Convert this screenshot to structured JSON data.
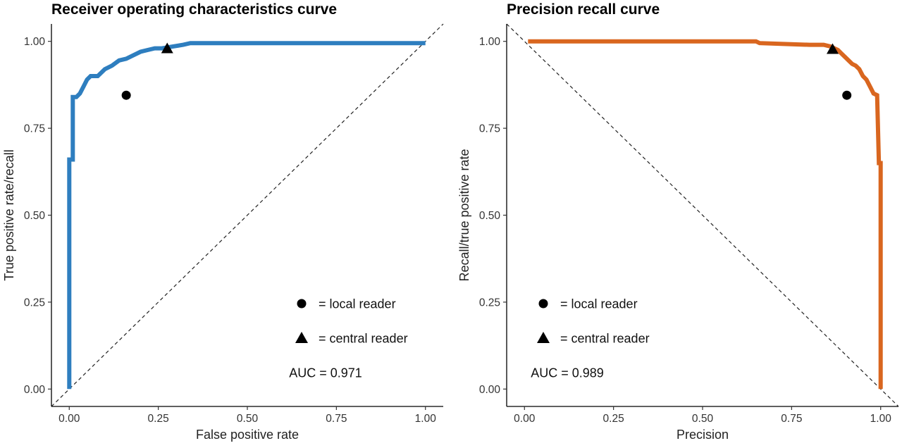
{
  "chart_data": [
    {
      "type": "line",
      "title": "Receiver operating characteristics curve",
      "xlabel": "False positive rate",
      "ylabel": "True positive rate/recall",
      "xlim": [
        -0.05,
        1.05
      ],
      "ylim": [
        -0.05,
        1.05
      ],
      "xticks": [
        "0.00",
        "0.25",
        "0.50",
        "0.75",
        "1.00"
      ],
      "yticks": [
        "0.00",
        "0.25",
        "0.50",
        "0.75",
        "1.00"
      ],
      "grid": false,
      "color": "#2e7ebf",
      "series": [
        {
          "x": [
            0.0,
            0.0,
            0.0,
            0.0,
            0.01,
            0.01,
            0.02,
            0.03,
            0.04,
            0.05,
            0.06,
            0.08,
            0.1,
            0.12,
            0.14,
            0.16,
            0.18,
            0.2,
            0.22,
            0.24,
            0.26,
            0.29,
            0.32,
            0.34,
            0.5,
            1.0
          ],
          "y": [
            0.0,
            0.66,
            0.66,
            0.66,
            0.66,
            0.84,
            0.84,
            0.85,
            0.87,
            0.89,
            0.9,
            0.9,
            0.92,
            0.93,
            0.945,
            0.95,
            0.96,
            0.97,
            0.975,
            0.98,
            0.98,
            0.985,
            0.99,
            0.995,
            0.995,
            0.995
          ]
        }
      ],
      "reference_line": {
        "x": [
          -0.05,
          1.05
        ],
        "y": [
          -0.05,
          1.05
        ]
      },
      "markers": [
        {
          "label": "= local reader",
          "shape": "circle",
          "x": 0.16,
          "y": 0.845
        },
        {
          "label": "= central reader",
          "shape": "triangle",
          "x": 0.275,
          "y": 0.98
        }
      ],
      "annotation": "AUC = 0.971"
    },
    {
      "type": "line",
      "title": "Precision recall curve",
      "xlabel": "Precision",
      "ylabel": "Recall/true positive rate",
      "xlim": [
        -0.05,
        1.05
      ],
      "ylim": [
        -0.05,
        1.05
      ],
      "xticks": [
        "0.00",
        "0.25",
        "0.50",
        "0.75",
        "1.00"
      ],
      "yticks": [
        "0.00",
        "0.25",
        "0.50",
        "0.75",
        "1.00"
      ],
      "grid": false,
      "color": "#d9661f",
      "series": [
        {
          "x": [
            0.01,
            0.65,
            0.66,
            0.8,
            0.84,
            0.86,
            0.87,
            0.88,
            0.89,
            0.9,
            0.91,
            0.92,
            0.93,
            0.94,
            0.95,
            0.96,
            0.97,
            0.98,
            0.99,
            0.995,
            1.0,
            1.0
          ],
          "y": [
            1.0,
            1.0,
            0.995,
            0.99,
            0.99,
            0.985,
            0.98,
            0.975,
            0.965,
            0.955,
            0.945,
            0.935,
            0.93,
            0.92,
            0.9,
            0.89,
            0.87,
            0.85,
            0.845,
            0.65,
            0.65,
            0.0
          ]
        }
      ],
      "reference_line": {
        "x": [
          -0.05,
          1.05
        ],
        "y": [
          1.05,
          -0.05
        ]
      },
      "markers": [
        {
          "label": "= local reader",
          "shape": "circle",
          "x": 0.905,
          "y": 0.845
        },
        {
          "label": "= central reader",
          "shape": "triangle",
          "x": 0.865,
          "y": 0.978
        }
      ],
      "annotation": "AUC = 0.989"
    }
  ]
}
